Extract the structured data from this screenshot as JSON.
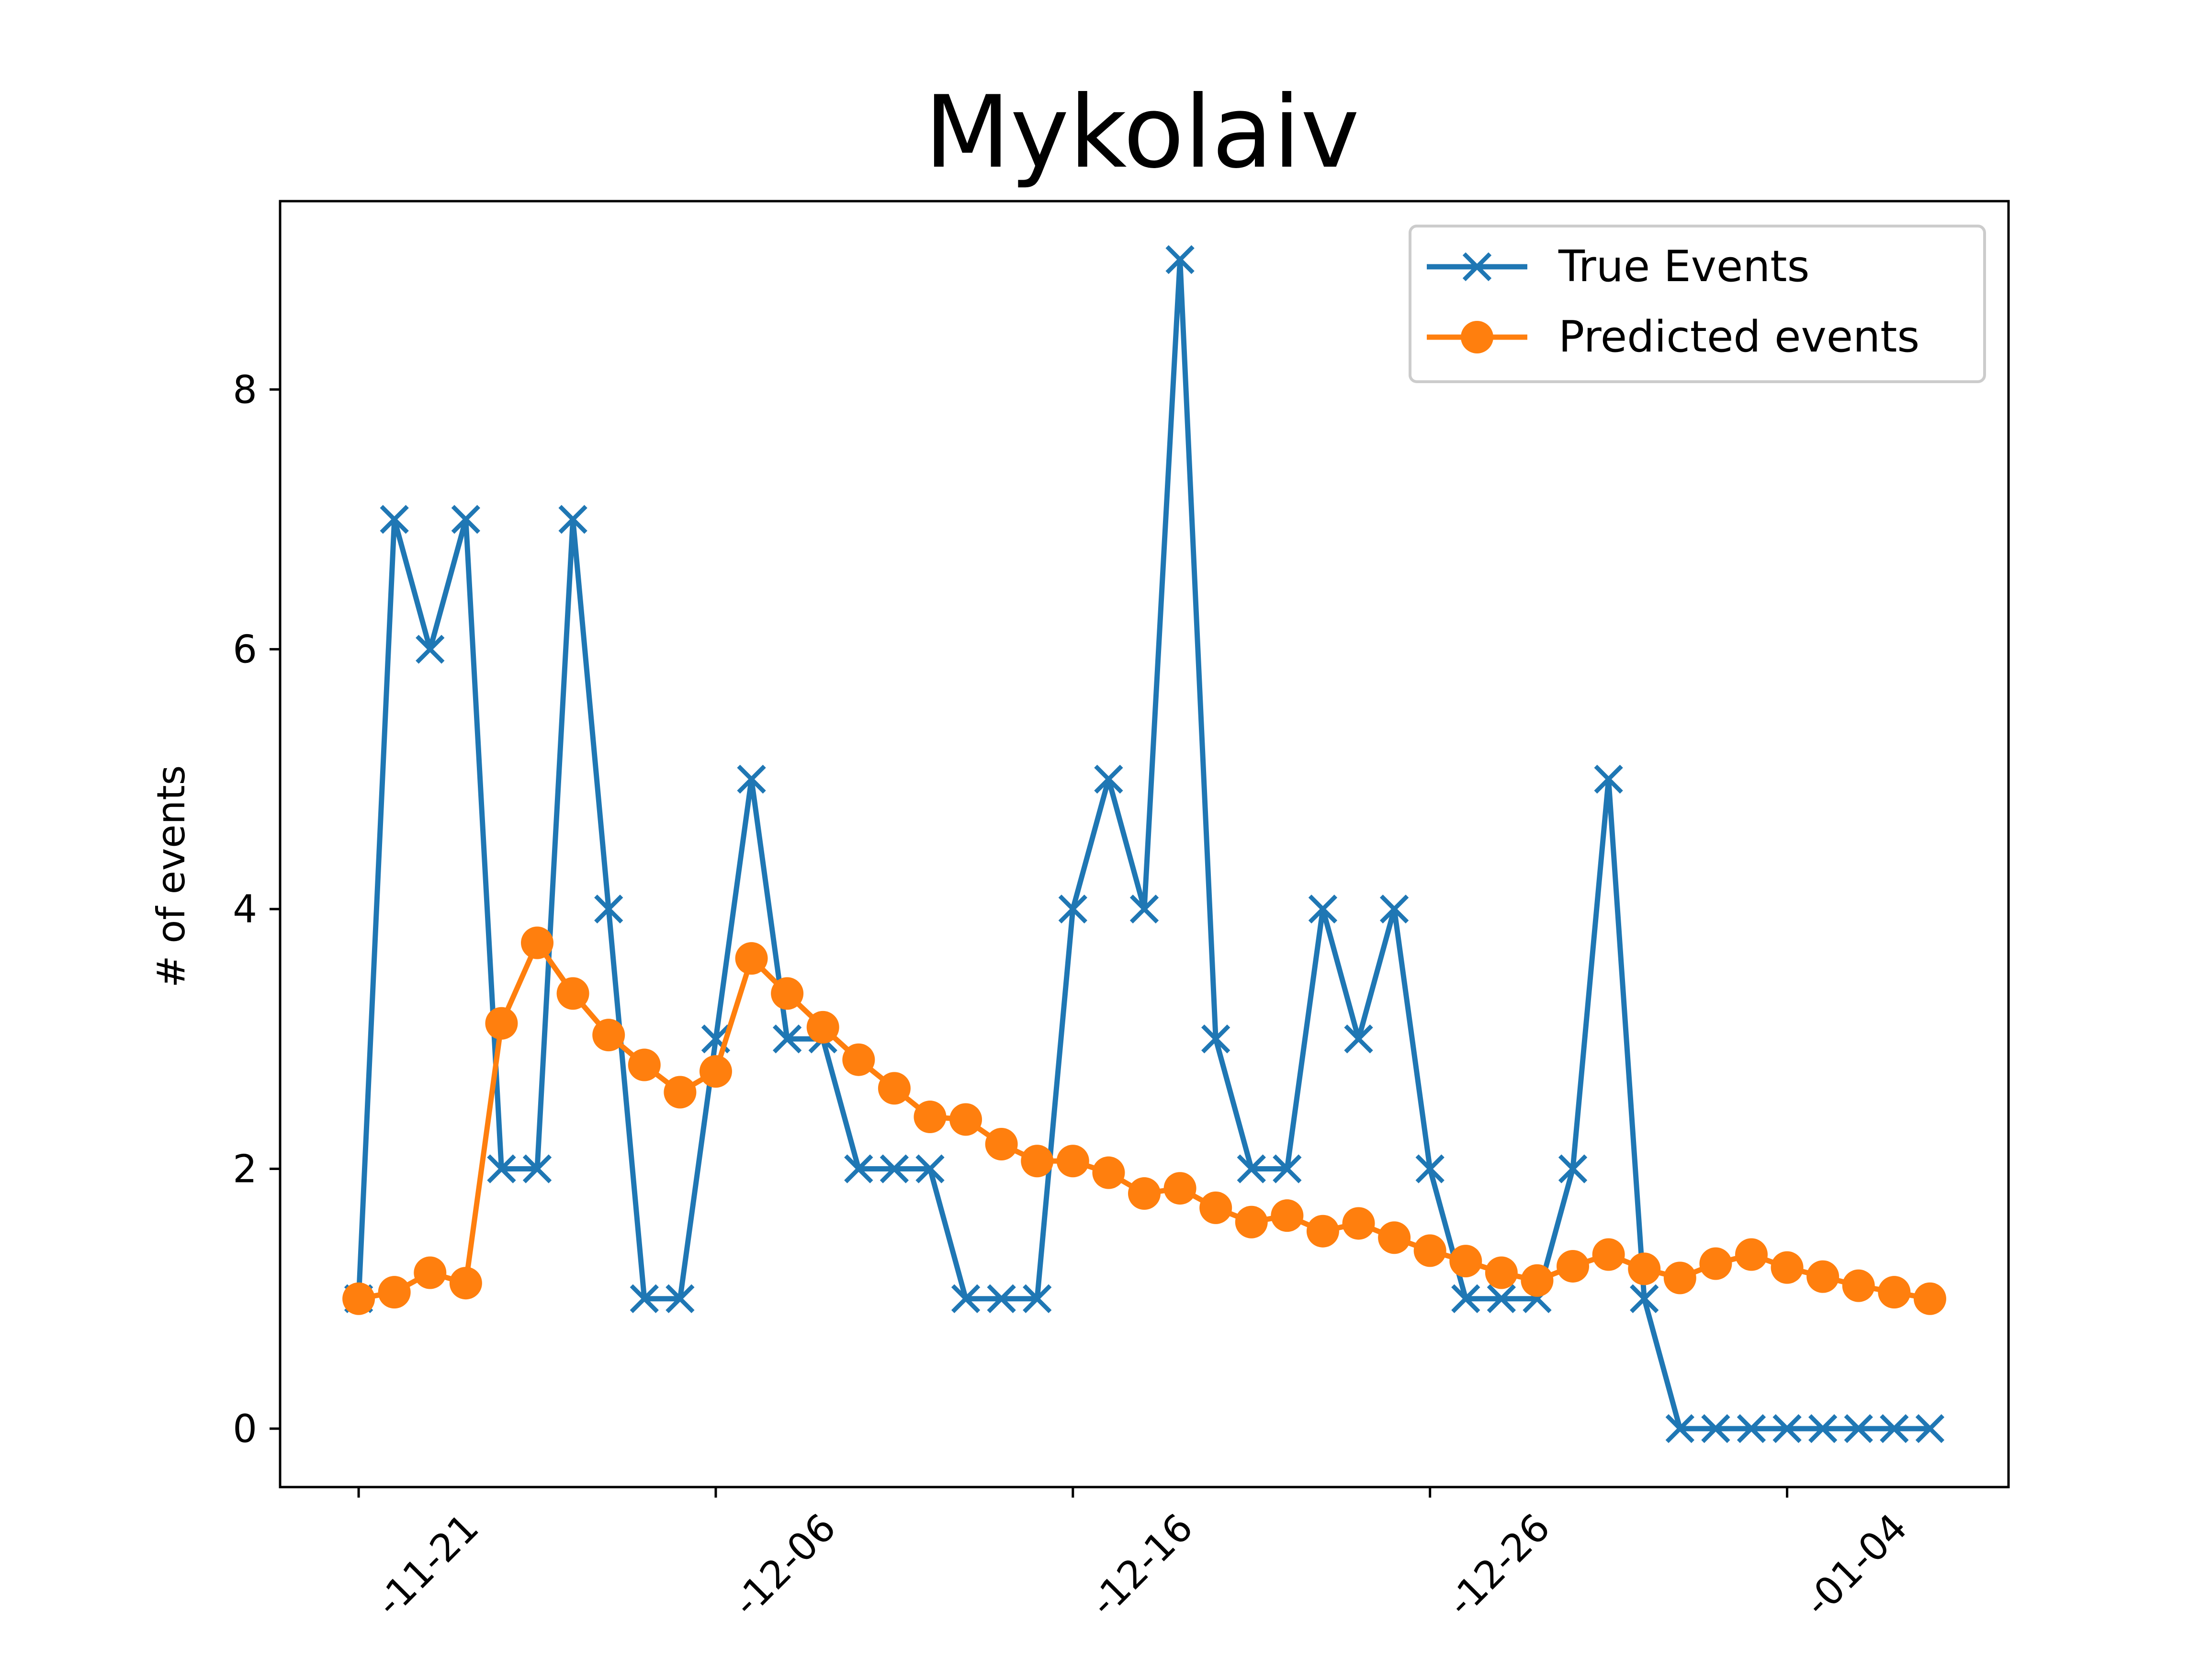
{
  "chart_data": {
    "type": "line",
    "title": "Mykolaiv",
    "xlabel": "",
    "ylabel": "# of events",
    "x_tick_labels": [
      "-11-21",
      "-12-06",
      "-12-16",
      "-12-26",
      "-01-04"
    ],
    "y_ticks": [
      0,
      2,
      4,
      6,
      8
    ],
    "ylim": [
      -0.45,
      9.45
    ],
    "xlim": [
      -2.2,
      46.2
    ],
    "grid": false,
    "legend_position": "top-right",
    "series": [
      {
        "name": "True Events",
        "color": "#1f77b4",
        "marker": "x",
        "values": [
          1,
          7,
          6,
          7,
          2,
          2,
          7,
          4,
          1,
          1,
          3,
          5,
          3,
          3,
          2,
          2,
          2,
          1,
          1,
          1,
          4,
          5,
          4,
          9,
          3,
          2,
          2,
          4,
          3,
          4,
          2,
          1,
          1,
          1,
          2,
          5,
          1,
          0,
          0,
          0,
          0,
          0,
          0,
          0,
          0
        ]
      },
      {
        "name": "Predicted events",
        "color": "#ff7f0e",
        "marker": "o",
        "values": [
          1.0,
          1.05,
          1.2,
          1.12,
          3.12,
          3.74,
          3.35,
          3.03,
          2.8,
          2.59,
          2.75,
          3.62,
          3.35,
          3.09,
          2.84,
          2.62,
          2.4,
          2.38,
          2.19,
          2.06,
          2.06,
          1.97,
          1.81,
          1.85,
          1.7,
          1.59,
          1.64,
          1.52,
          1.58,
          1.47,
          1.37,
          1.29,
          1.2,
          1.14,
          1.25,
          1.34,
          1.23,
          1.16,
          1.27,
          1.34,
          1.24,
          1.17,
          1.1,
          1.05,
          1.0
        ]
      }
    ]
  }
}
